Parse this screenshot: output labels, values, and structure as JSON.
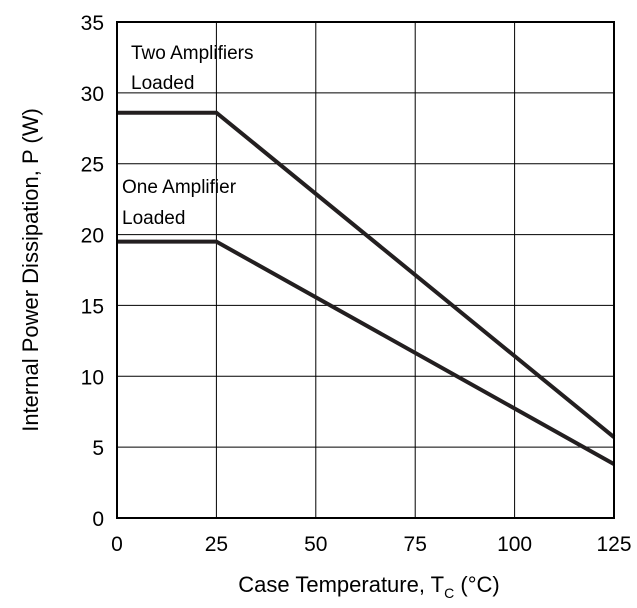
{
  "chart_data": {
    "type": "line",
    "xlabel": "Case Temperature, T",
    "xlabel_subscript": "C",
    "xlabel_suffix": " (°C)",
    "ylabel": "Internal Power Dissipation, P (W)",
    "xlim": [
      0,
      125
    ],
    "ylim": [
      0,
      35
    ],
    "x_ticks": [
      0,
      25,
      50,
      75,
      100,
      125
    ],
    "y_ticks": [
      0,
      5,
      10,
      15,
      20,
      25,
      30,
      35
    ],
    "x_tick_labels": [
      "0",
      "25",
      "50",
      "75",
      "100",
      "125"
    ],
    "y_tick_labels": [
      "0",
      "5",
      "10",
      "15",
      "20",
      "25",
      "30",
      "35"
    ],
    "grid": true,
    "series": [
      {
        "x": [
          0,
          25,
          125
        ],
        "y": [
          28.6,
          28.6,
          5.7
        ]
      },
      {
        "x": [
          0,
          25,
          125
        ],
        "y": [
          19.5,
          19.5,
          3.8
        ]
      }
    ],
    "annotations": [
      {
        "lines": [
          "Two Amplifiers",
          "Loaded"
        ]
      },
      {
        "lines": [
          "One Amplifier",
          "Loaded"
        ]
      }
    ],
    "line_color": "#231f20",
    "grid_color": "#000000"
  }
}
